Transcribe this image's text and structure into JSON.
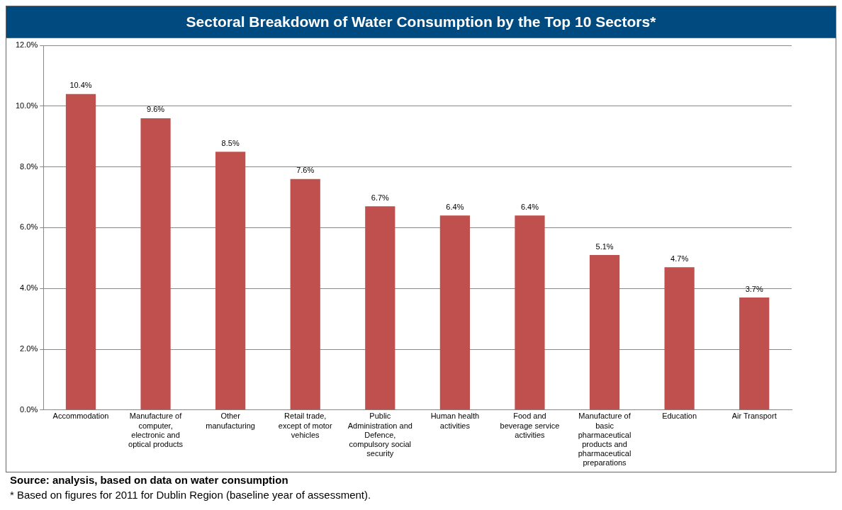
{
  "chart_data": {
    "type": "bar",
    "title": "Sectoral Breakdown of Water Consumption by the Top 10 Sectors*",
    "categories": [
      "Accommodation",
      "Manufacture of computer, electronic and optical products",
      "Other manufacturing",
      "Retail trade, except of motor vehicles",
      "Public Administration and Defence, compulsory social security",
      "Human health activities",
      "Food and beverage service activities",
      "Manufacture of basic pharmaceutical products and pharmaceutical preparations",
      "Education",
      "Air Transport"
    ],
    "values": [
      10.4,
      9.6,
      8.5,
      7.6,
      6.7,
      6.4,
      6.4,
      5.1,
      4.7,
      3.7
    ],
    "value_labels": [
      "10.4%",
      "9.6%",
      "8.5%",
      "7.6%",
      "6.7%",
      "6.4%",
      "6.4%",
      "5.1%",
      "4.7%",
      "3.7%"
    ],
    "color": "#c0504d",
    "ylim": [
      0,
      12
    ],
    "yticks": [
      {
        "value": 0,
        "label": "0.0%"
      },
      {
        "value": 2,
        "label": "2.0%"
      },
      {
        "value": 4,
        "label": "4.0%"
      },
      {
        "value": 6,
        "label": "6.0%"
      },
      {
        "value": 8,
        "label": "8.0%"
      },
      {
        "value": 10,
        "label": "10.0%"
      },
      {
        "value": 12,
        "label": "12.0%"
      }
    ],
    "grid": "y",
    "annotations": [
      "Source: analysis, based on data on water consumption",
      "* Based on figures for 2011 for Dublin Region (baseline year of assessment)."
    ]
  }
}
